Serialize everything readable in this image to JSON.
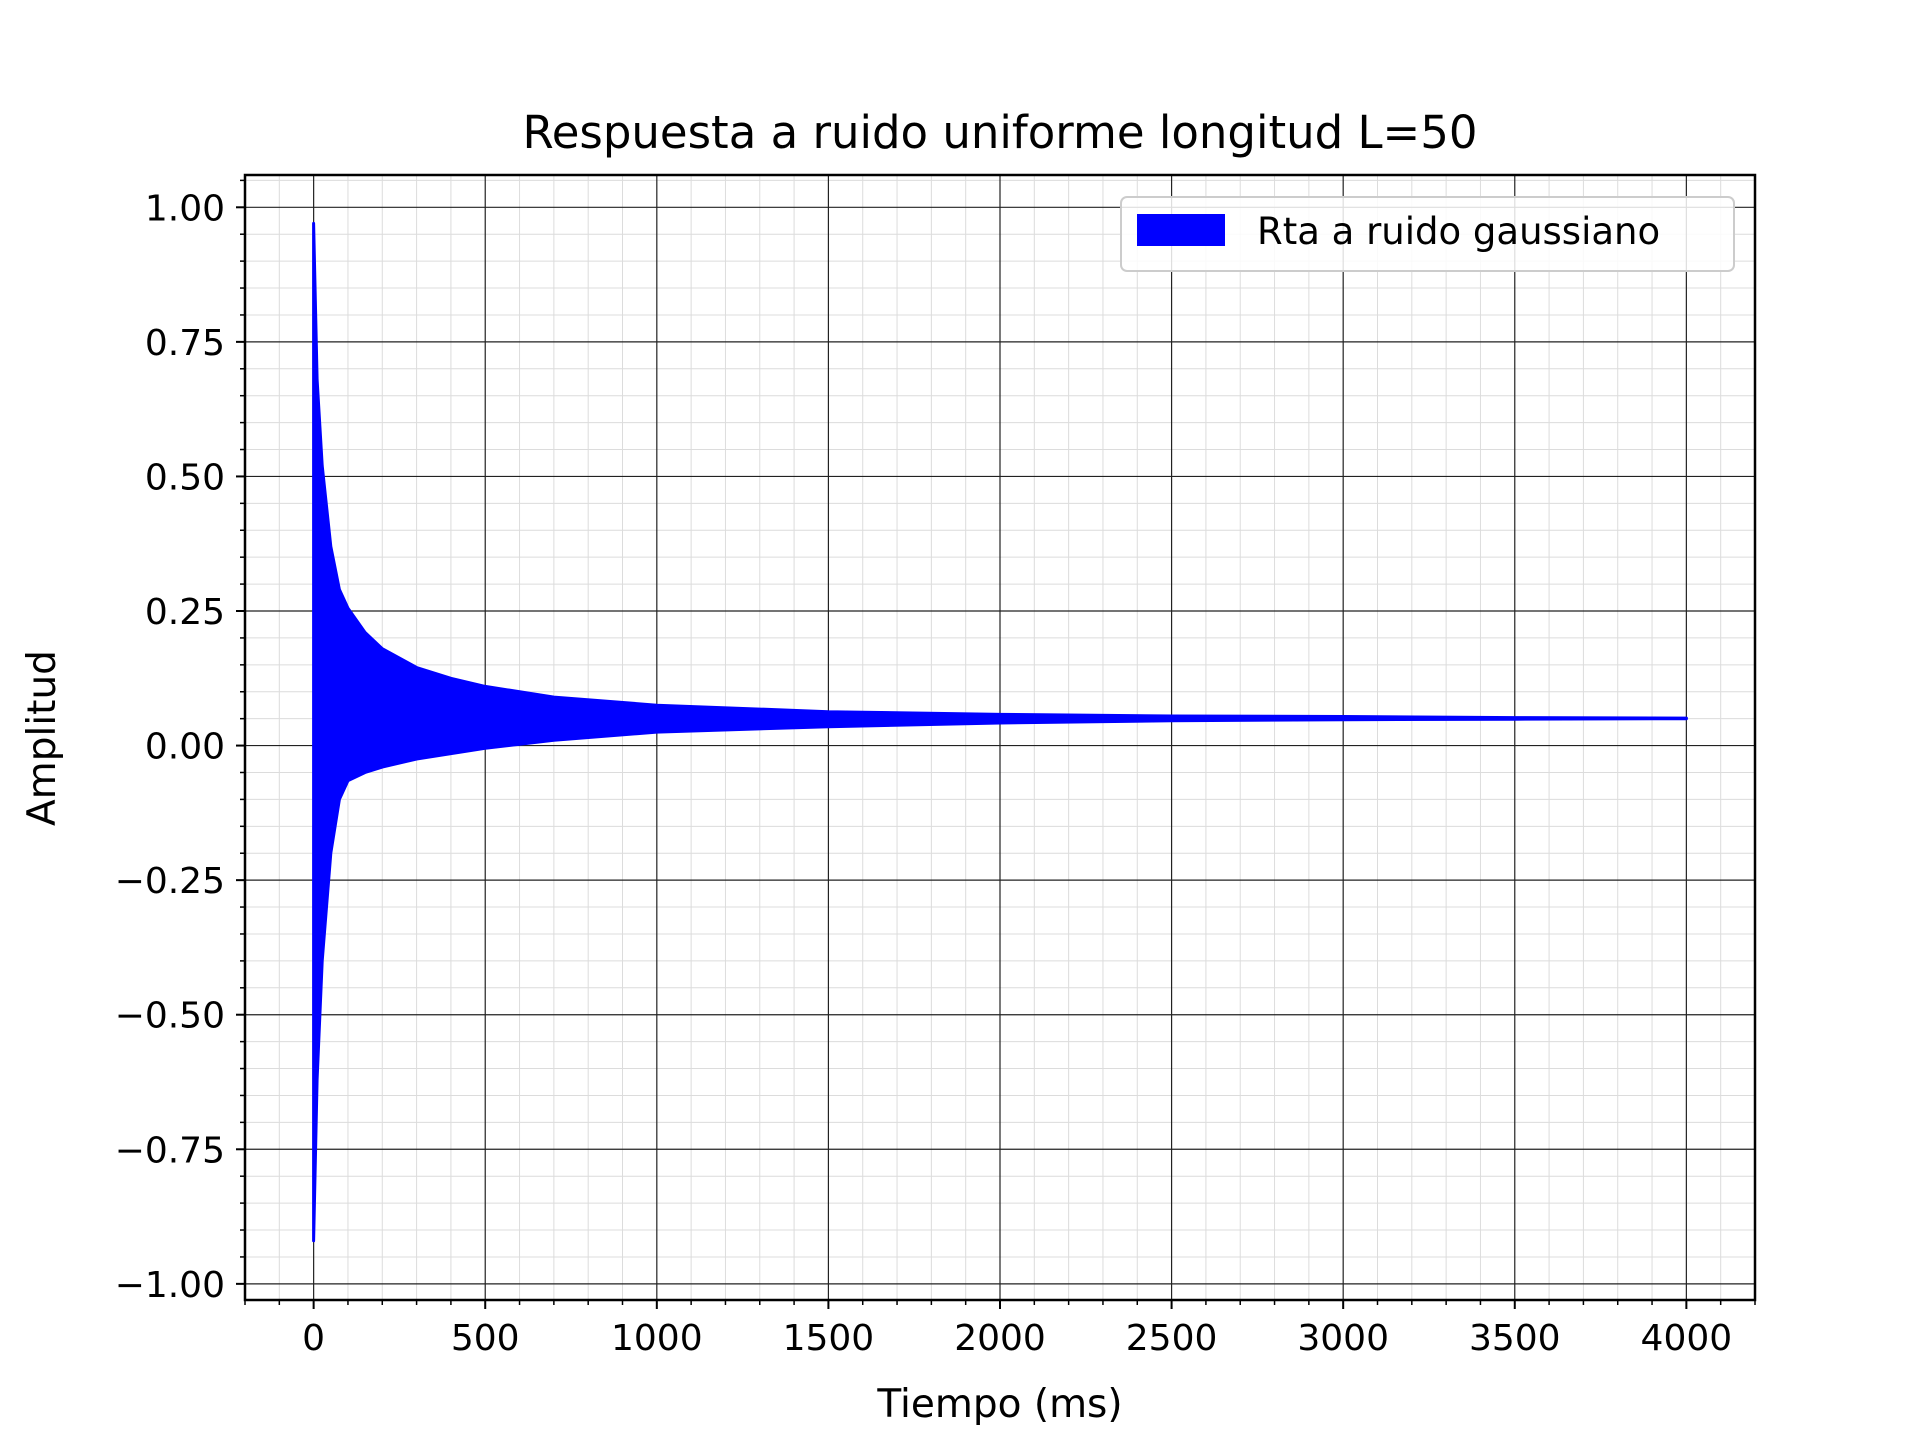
{
  "chart_data": {
    "type": "line",
    "title": "Respuesta a ruido uniforme longitud L=50",
    "xlabel": "Tiempo (ms)",
    "ylabel": "Amplitud",
    "xlim": [
      -200,
      4200
    ],
    "ylim": [
      -1.03,
      1.06
    ],
    "xticks": [
      0,
      500,
      1000,
      1500,
      2000,
      2500,
      3000,
      3500,
      4000
    ],
    "xtick_labels": [
      "0",
      "500",
      "1000",
      "1500",
      "2000",
      "2500",
      "3000",
      "3500",
      "4000"
    ],
    "yticks": [
      1.0,
      0.75,
      0.5,
      0.25,
      0.0,
      -0.25,
      -0.5,
      -0.75,
      -1.0
    ],
    "ytick_labels": [
      "1.00",
      "0.75",
      "0.50",
      "0.25",
      "0.00",
      "−0.25",
      "−0.50",
      "−0.75",
      "−1.00"
    ],
    "grid": {
      "major": true,
      "minor": true
    },
    "legend": {
      "position": "top-right"
    },
    "series": [
      {
        "name": "Rta a ruido gaussiano",
        "color": "#0000ff",
        "style": "dense-oscillation-envelope",
        "x": [
          0,
          10,
          25,
          50,
          75,
          100,
          150,
          200,
          300,
          400,
          500,
          700,
          1000,
          1500,
          2000,
          2500,
          3000,
          3500,
          4000
        ],
        "upper": [
          0.97,
          0.68,
          0.52,
          0.37,
          0.29,
          0.255,
          0.21,
          0.18,
          0.145,
          0.125,
          0.11,
          0.09,
          0.075,
          0.063,
          0.058,
          0.055,
          0.054,
          0.052,
          0.051
        ],
        "lower": [
          -0.92,
          -0.62,
          -0.4,
          -0.2,
          -0.1,
          -0.065,
          -0.05,
          -0.04,
          -0.025,
          -0.015,
          -0.005,
          0.01,
          0.025,
          0.035,
          0.042,
          0.046,
          0.048,
          0.049,
          0.05
        ]
      }
    ]
  }
}
